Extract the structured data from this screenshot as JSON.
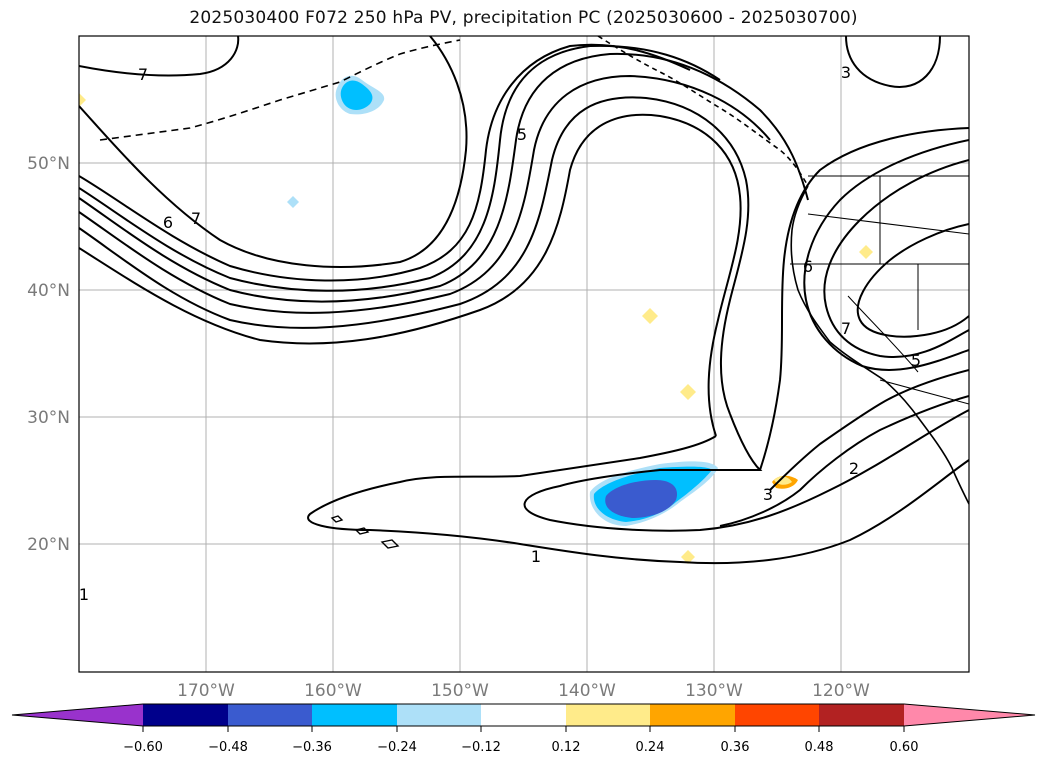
{
  "title": "2025030400 F072 250 hPa PV, precipitation PC (2025030600 - 2025030700)",
  "map": {
    "lat_labels": [
      "50°N",
      "40°N",
      "30°N",
      "20°N"
    ],
    "lon_labels": [
      "170°W",
      "160°W",
      "150°W",
      "140°W",
      "130°W",
      "120°W"
    ],
    "contour_labels": [
      "7",
      "5",
      "3",
      "6",
      "7",
      "6",
      "7",
      "5",
      "2",
      "3",
      "1",
      "1"
    ]
  },
  "colorbar": {
    "ticks": [
      "−0.60",
      "−0.48",
      "−0.36",
      "−0.24",
      "−0.12",
      "0.12",
      "0.24",
      "0.36",
      "0.48",
      "0.60"
    ],
    "colors": {
      "under": "#9932cc",
      "bins": [
        "#00008b",
        "#3a5bcf",
        "#00bfff",
        "#ade0f8",
        "#ffffff",
        "#ffeb8a",
        "#ffa500",
        "#ff4500",
        "#b22222"
      ],
      "over": "#ff88aa"
    }
  }
}
